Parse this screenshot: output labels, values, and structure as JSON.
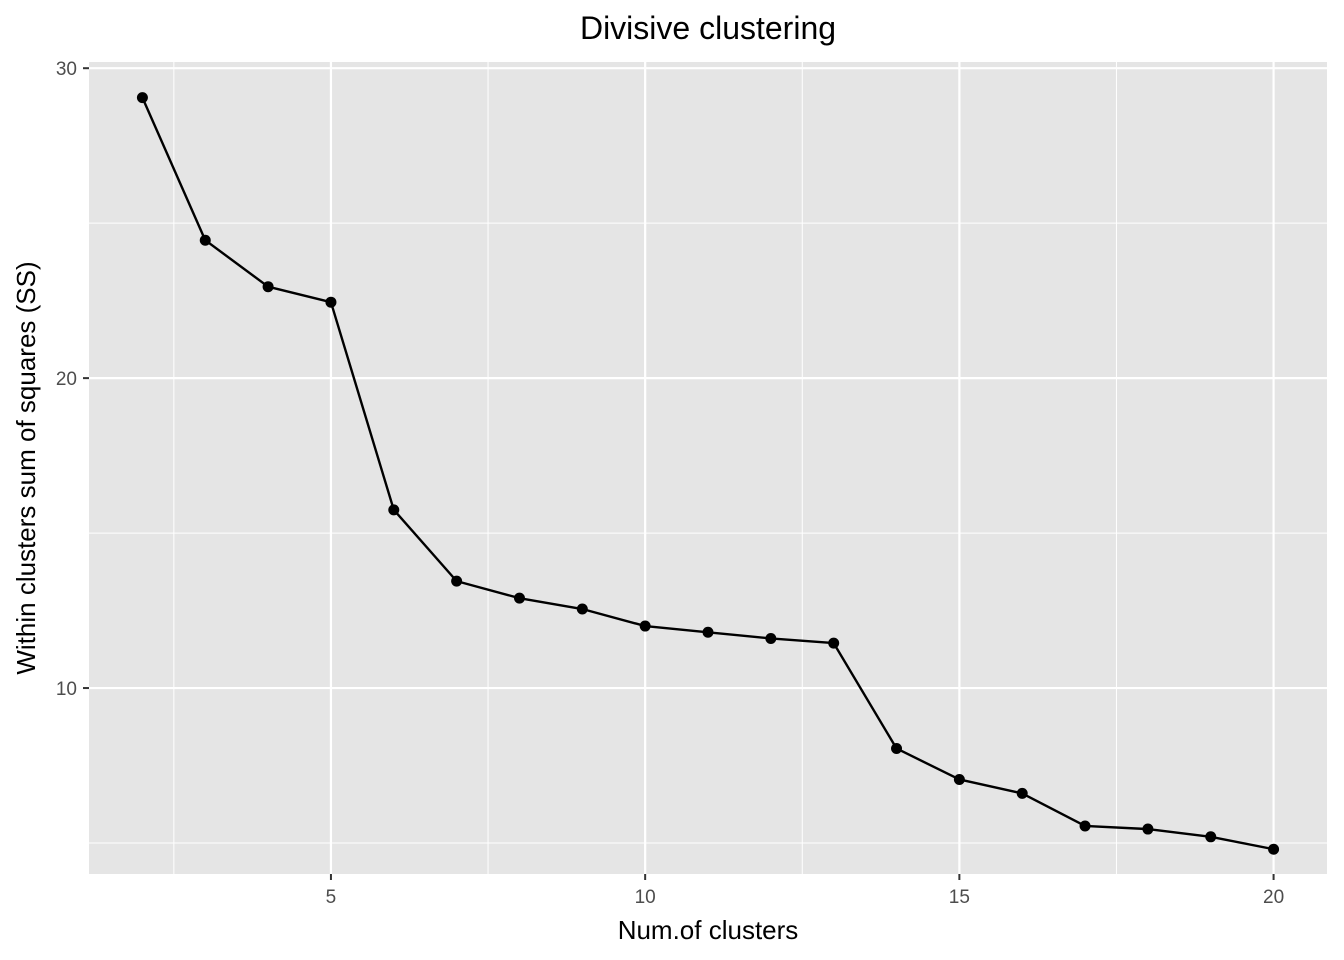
{
  "chart_data": {
    "type": "line",
    "title": "Divisive clustering",
    "xlabel": "Num.of clusters",
    "ylabel": "Within clusters sum of squares (SS)",
    "x": [
      2,
      3,
      4,
      5,
      6,
      7,
      8,
      9,
      10,
      11,
      12,
      13,
      14,
      15,
      16,
      17,
      18,
      19,
      20
    ],
    "series": [
      {
        "values": [
          29.05,
          24.45,
          22.95,
          22.45,
          15.75,
          13.45,
          12.9,
          12.55,
          12.0,
          11.8,
          11.6,
          11.45,
          8.05,
          7.05,
          6.6,
          5.55,
          5.45,
          5.2,
          4.8
        ]
      }
    ],
    "xlim": [
      1.15,
      20.85
    ],
    "ylim": [
      4.0,
      30.2
    ],
    "x_ticks": [
      5,
      10,
      15,
      20
    ],
    "x_tick_labels": [
      "5",
      "10",
      "15",
      "20"
    ],
    "x_minor_ticks": [
      2.5,
      7.5,
      12.5,
      17.5
    ],
    "y_ticks": [
      10,
      20,
      30
    ],
    "y_tick_labels": [
      "10",
      "20",
      "30"
    ],
    "y_minor_ticks": [
      5,
      15,
      25
    ],
    "grid": true,
    "legend": "none",
    "colors": {
      "panel_background": "#e5e5e5",
      "grid_line": "#ffffff",
      "series_line": "#000000",
      "point": "#000000",
      "tick_label": "#4d4d4d",
      "tick_mark": "#333333"
    }
  }
}
